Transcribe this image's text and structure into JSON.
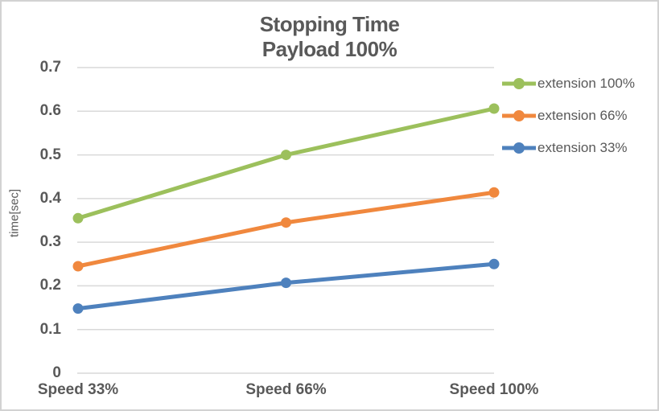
{
  "window": {
    "background": "#ffffff",
    "border_color": "#d2d2d2"
  },
  "title": {
    "line1": "Stopping Time",
    "line2": "Payload 100%"
  },
  "chart_data": {
    "type": "line",
    "title": "Stopping Time",
    "subtitle": "Payload 100%",
    "categories": [
      "Speed 33%",
      "Speed 66%",
      "Speed 100%"
    ],
    "series": [
      {
        "name": "extension 100%",
        "color": "#9cc05c",
        "values": [
          0.355,
          0.5,
          0.606
        ]
      },
      {
        "name": "extension 66%",
        "color": "#f0883e",
        "values": [
          0.245,
          0.345,
          0.414
        ]
      },
      {
        "name": "extension 33%",
        "color": "#4e81bd",
        "values": [
          0.148,
          0.207,
          0.25
        ]
      }
    ],
    "xlabel": "",
    "ylabel": "time[sec]",
    "ylim": [
      0,
      0.7
    ],
    "yticks": [
      0,
      0.1,
      0.2,
      0.3,
      0.4,
      0.5,
      0.6,
      0.7
    ],
    "ytick_labels": [
      "0",
      "0.1",
      "0.2",
      "0.3",
      "0.4",
      "0.5",
      "0.6",
      "0.7"
    ],
    "grid": true,
    "grid_color": "#d9d9d9",
    "text_color": "#595959",
    "legend_position": "right",
    "marker": "circle",
    "line_width": 5
  }
}
